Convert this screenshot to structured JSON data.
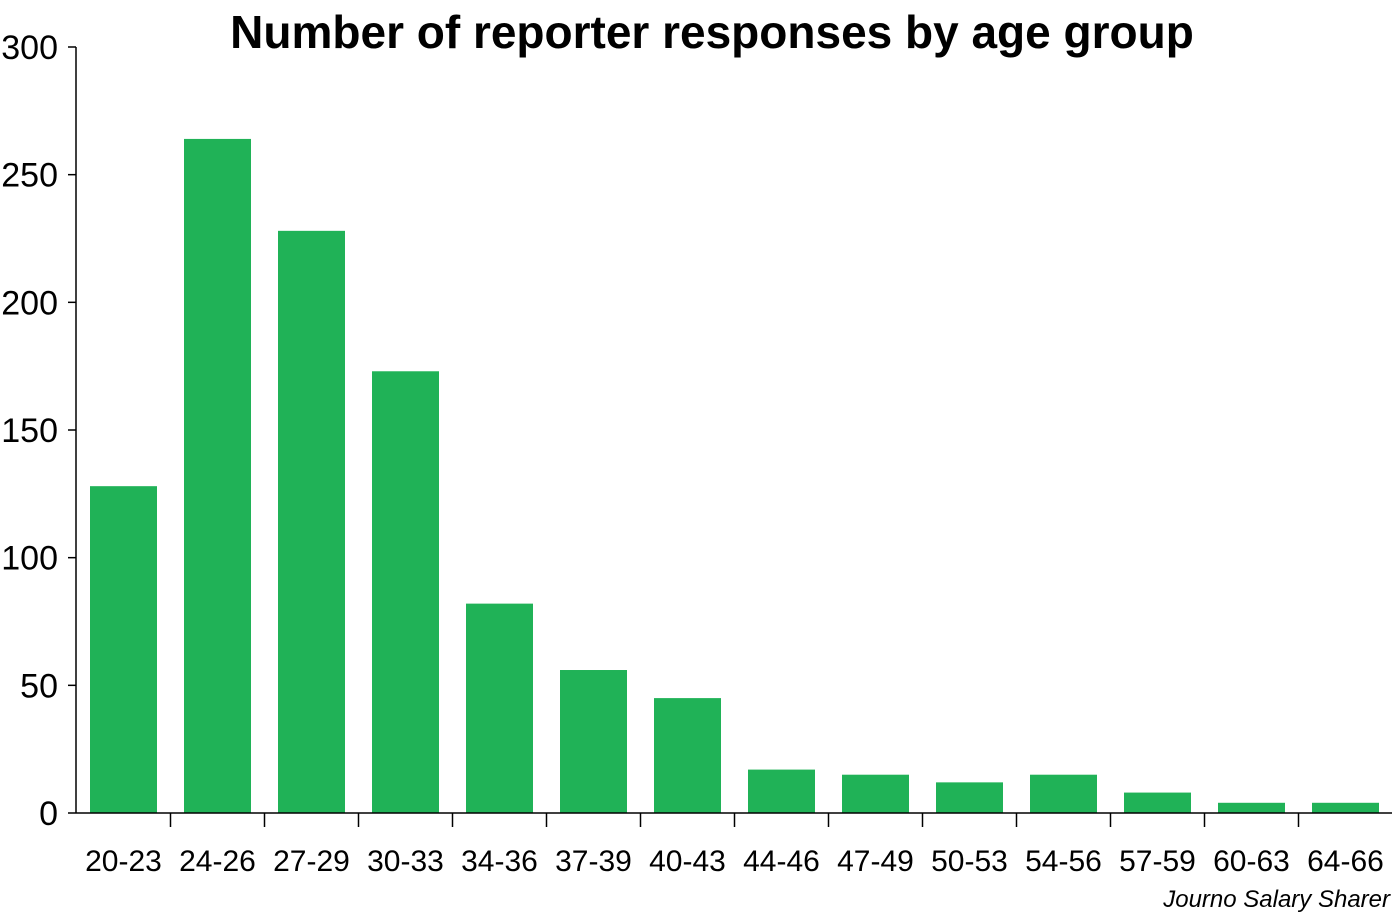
{
  "chart_data": {
    "type": "bar",
    "title": "Number of reporter responses by age group",
    "xlabel": "",
    "ylabel": "",
    "categories": [
      "20-23",
      "24-26",
      "27-29",
      "30-33",
      "34-36",
      "37-39",
      "40-43",
      "44-46",
      "47-49",
      "50-53",
      "54-56",
      "57-59",
      "60-63",
      "64-66"
    ],
    "values": [
      128,
      264,
      228,
      173,
      82,
      56,
      45,
      17,
      15,
      12,
      15,
      8,
      4,
      4
    ],
    "ylim": [
      0,
      300
    ],
    "yticks": [
      0,
      50,
      100,
      150,
      200,
      250,
      300
    ],
    "ytick_labels": [
      "0",
      "50",
      "100",
      "150",
      "200",
      "250",
      "300"
    ],
    "grid": false,
    "legend": "none",
    "bar_color": "#20b257",
    "axis_color": "#000000",
    "source": "Journo Salary Sharer"
  }
}
